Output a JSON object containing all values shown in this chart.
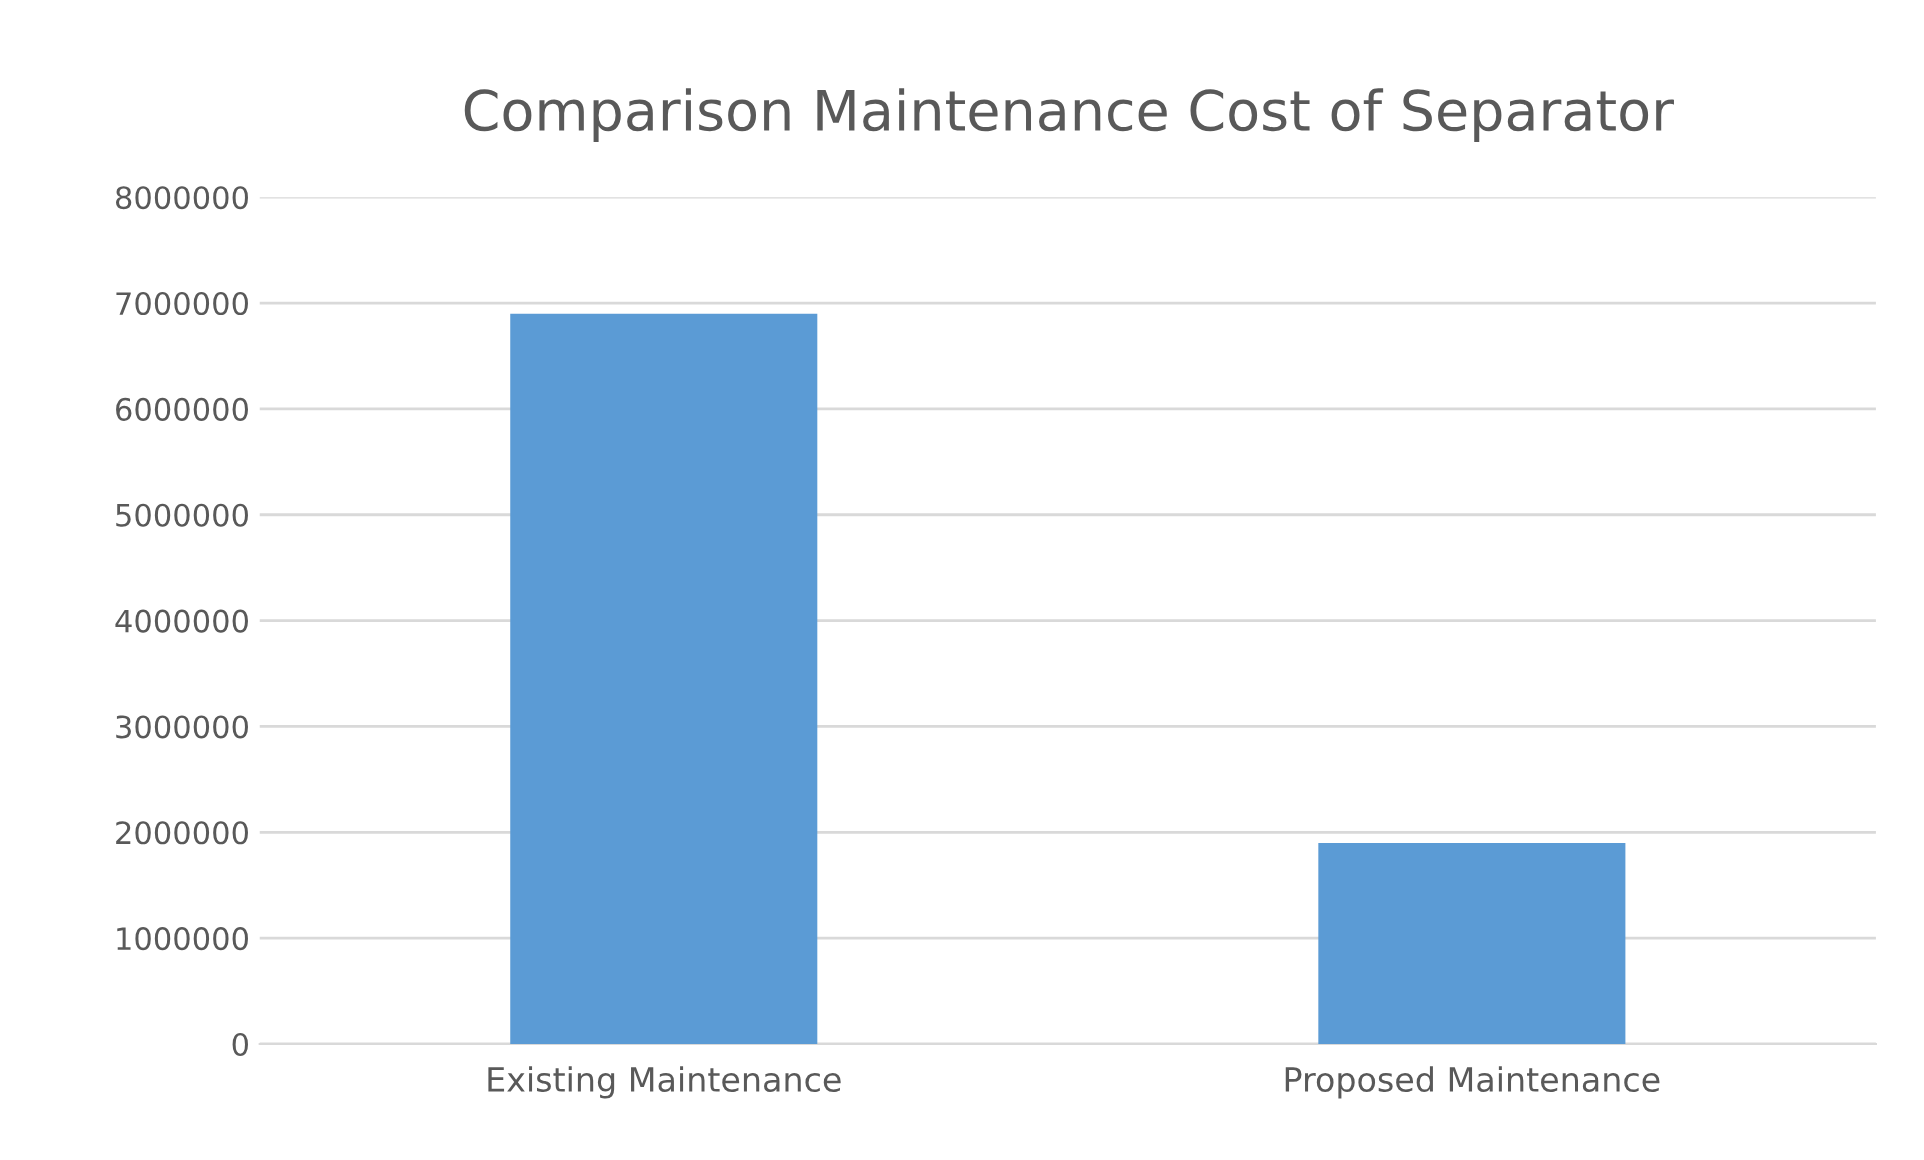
{
  "chart_data": {
    "type": "bar",
    "title": "Comparison Maintenance Cost of Separator",
    "categories": [
      "Existing Maintenance",
      "Proposed Maintenance"
    ],
    "values": [
      6900000,
      1900000
    ],
    "color": "#5b9bd5",
    "ylim": [
      0,
      8000000
    ],
    "yticks": [
      0,
      1000000,
      2000000,
      3000000,
      4000000,
      5000000,
      6000000,
      7000000,
      8000000
    ],
    "grid": "y",
    "legend": false
  }
}
